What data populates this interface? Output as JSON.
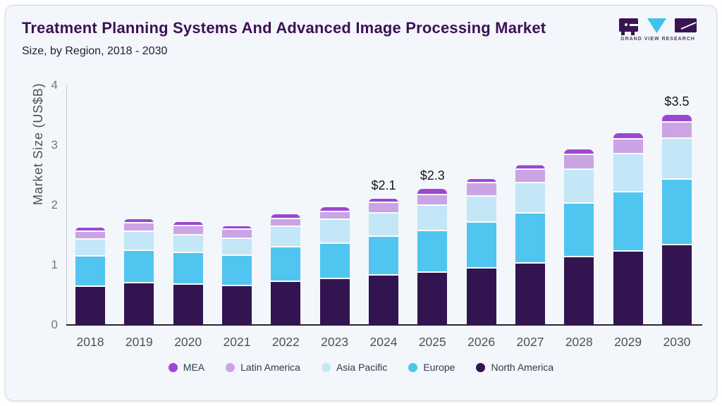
{
  "header": {
    "title": "Treatment Planning Systems And Advanced Image Processing Market",
    "subtitle": "Size, by Region, 2018 - 2030"
  },
  "logo": {
    "brand": "GRAND VIEW RESEARCH",
    "dark_color": "#3a1353",
    "accent_color": "#40c3ea"
  },
  "chart_data": {
    "type": "bar",
    "stacked": true,
    "title": "Treatment Planning Systems And Advanced Image Processing Market Size, by Region, 2018 - 2030",
    "xlabel": "",
    "ylabel": "Market Size (US$B)",
    "ylim": [
      0,
      4
    ],
    "yticks": [
      0,
      1,
      2,
      3,
      4
    ],
    "grid": false,
    "legend_position": "bottom",
    "categories": [
      "2018",
      "2019",
      "2020",
      "2021",
      "2022",
      "2023",
      "2024",
      "2025",
      "2026",
      "2027",
      "2028",
      "2029",
      "2030"
    ],
    "series": [
      {
        "name": "North America",
        "color": "#321450",
        "values": [
          0.64,
          0.7,
          0.67,
          0.65,
          0.72,
          0.77,
          0.82,
          0.87,
          0.94,
          1.03,
          1.13,
          1.23,
          1.33
        ]
      },
      {
        "name": "Europe",
        "color": "#4fc5f0",
        "values": [
          0.5,
          0.54,
          0.53,
          0.51,
          0.57,
          0.59,
          0.65,
          0.7,
          0.77,
          0.83,
          0.9,
          0.99,
          1.1
        ]
      },
      {
        "name": "Asia Pacific",
        "color": "#c4e7f8",
        "values": [
          0.29,
          0.32,
          0.3,
          0.28,
          0.35,
          0.39,
          0.39,
          0.42,
          0.44,
          0.51,
          0.56,
          0.63,
          0.68
        ]
      },
      {
        "name": "Latin America",
        "color": "#cba4e6",
        "values": [
          0.13,
          0.14,
          0.15,
          0.15,
          0.13,
          0.14,
          0.18,
          0.18,
          0.22,
          0.22,
          0.25,
          0.25,
          0.27
        ]
      },
      {
        "name": "MEA",
        "color": "#9d46d1",
        "values": [
          0.07,
          0.07,
          0.07,
          0.06,
          0.08,
          0.08,
          0.07,
          0.1,
          0.07,
          0.08,
          0.09,
          0.1,
          0.13
        ]
      }
    ],
    "bar_labels": {
      "2024": "$2.1",
      "2025": "$2.3",
      "2030": "$3.5"
    },
    "totals": [
      1.63,
      1.77,
      1.72,
      1.65,
      1.85,
      1.97,
      2.11,
      2.27,
      2.44,
      2.67,
      2.93,
      3.2,
      3.51
    ]
  }
}
